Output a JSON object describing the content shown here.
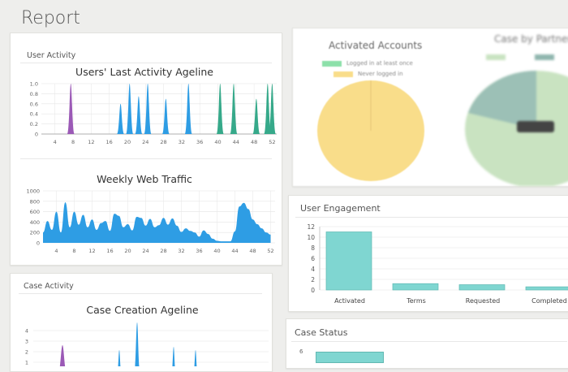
{
  "page": {
    "title": "Report"
  },
  "user_activity": {
    "panel_title": "User Activity",
    "ageline_title": "Users' Last Activity Ageline",
    "traffic_title": "Weekly Web Traffic"
  },
  "case_activity": {
    "panel_title": "Case Activity",
    "ageline_title": "Case Creation Ageline"
  },
  "activated_accounts": {
    "title": "Activated Accounts",
    "legend": [
      "Logged in at least once",
      "Never logged in"
    ]
  },
  "case_by_partner": {
    "title": "Case by Partner"
  },
  "user_engagement": {
    "panel_title": "User Engagement"
  },
  "case_status": {
    "panel_title": "Case Status"
  },
  "colors": {
    "blue": "#2e9de4",
    "purple": "#9b59b6",
    "green": "#36a98a",
    "teal_bar": "#7fd6d1",
    "yellow": "#f9dd8a",
    "light_green": "#c9e3c1",
    "grid": "#e5e5e5"
  },
  "chart_data": [
    {
      "type": "area",
      "title": "Users' Last Activity Ageline",
      "x_ticks": [
        "4",
        "8",
        "12",
        "16",
        "20",
        "24",
        "28",
        "32",
        "36",
        "40",
        "44",
        "48",
        "52"
      ],
      "y_ticks": [
        "0",
        "0.2",
        "0.4",
        "0.6",
        "0.8",
        "1.0"
      ],
      "ylim": [
        0,
        1
      ],
      "series": [
        {
          "color": "#9b59b6",
          "peaks": [
            [
              7.5,
              1
            ]
          ]
        },
        {
          "color": "#2e9de4",
          "peaks": [
            [
              18.5,
              0.6
            ],
            [
              20.5,
              1
            ],
            [
              22.5,
              0.75
            ],
            [
              24.5,
              1
            ],
            [
              28.5,
              0.7
            ],
            [
              33.5,
              1
            ]
          ]
        },
        {
          "color": "#36a98a",
          "peaks": [
            [
              40.5,
              1
            ],
            [
              43.5,
              1
            ],
            [
              48.5,
              0.7
            ],
            [
              51,
              1
            ],
            [
              52,
              1
            ]
          ]
        }
      ]
    },
    {
      "type": "area",
      "title": "Weekly Web Traffic",
      "x_ticks": [
        "4",
        "8",
        "12",
        "16",
        "20",
        "24",
        "28",
        "32",
        "36",
        "40",
        "44",
        "48",
        "52"
      ],
      "y_ticks": [
        "0",
        "200",
        "400",
        "600",
        "800",
        "1000"
      ],
      "ylim": [
        0,
        1000
      ],
      "x": [
        1,
        2,
        3,
        4,
        5,
        6,
        7,
        8,
        9,
        10,
        11,
        12,
        13,
        14,
        15,
        16,
        17,
        18,
        19,
        20,
        21,
        22,
        23,
        24,
        25,
        26,
        27,
        28,
        29,
        30,
        31,
        32,
        33,
        34,
        35,
        36,
        37,
        38,
        39,
        40,
        41,
        42,
        43,
        44,
        45,
        46,
        47,
        48,
        49,
        50,
        51,
        52
      ],
      "values": [
        200,
        420,
        250,
        600,
        200,
        780,
        300,
        600,
        350,
        540,
        300,
        450,
        250,
        380,
        420,
        230,
        560,
        520,
        300,
        360,
        240,
        500,
        480,
        330,
        460,
        300,
        340,
        480,
        350,
        470,
        330,
        210,
        280,
        230,
        200,
        120,
        240,
        170,
        80,
        40,
        30,
        30,
        30,
        220,
        700,
        770,
        650,
        450,
        360,
        280,
        200,
        160
      ]
    },
    {
      "type": "pie",
      "title": "Activated Accounts",
      "labels": [
        "Logged in at least once",
        "Never logged in"
      ],
      "values": [
        0.5,
        99.5
      ],
      "colors": [
        "#8ce0a9",
        "#f9dd8a"
      ]
    },
    {
      "type": "bar",
      "categories": [
        "Activated",
        "Terms",
        "Requested",
        "Completed"
      ],
      "values": [
        11,
        1.2,
        1,
        0.6
      ],
      "y_ticks": [
        "0",
        "2",
        "4",
        "6",
        "8",
        "10",
        "12"
      ],
      "ylim": [
        0,
        12
      ]
    },
    {
      "type": "area",
      "title": "Case Creation Ageline",
      "y_ticks": [
        "1",
        "2",
        "3",
        "4"
      ],
      "ylim": [
        0,
        4
      ]
    }
  ]
}
